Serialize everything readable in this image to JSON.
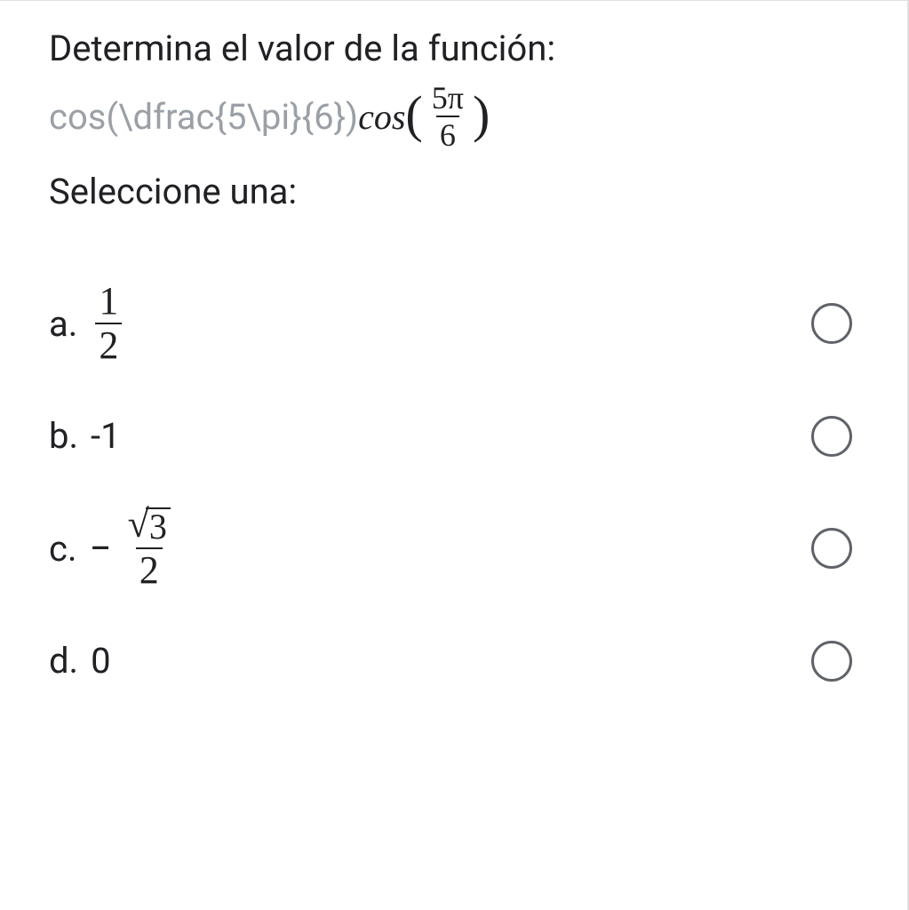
{
  "question": {
    "title": "Determina el valor de la función:",
    "latex_raw": "cos(\\dfrac{5\\pi}{6})",
    "rendered": {
      "func": "cos",
      "numerator": "5π",
      "denominator": "6"
    },
    "select_label": "Seleccione una:"
  },
  "options": {
    "a": {
      "letter": "a.",
      "frac_num": "1",
      "frac_den": "2",
      "selected": false
    },
    "b": {
      "letter": "b.",
      "text": "-1",
      "selected": false
    },
    "c": {
      "letter": "c.",
      "neg": "−",
      "sqrt_arg": "3",
      "frac_den": "2",
      "selected": false
    },
    "d": {
      "letter": "d.",
      "text": "0",
      "selected": false
    }
  },
  "colors": {
    "text_primary": "#202124",
    "text_muted": "#9aa0a6",
    "radio_border": "#5f6368",
    "background": "#ffffff"
  }
}
